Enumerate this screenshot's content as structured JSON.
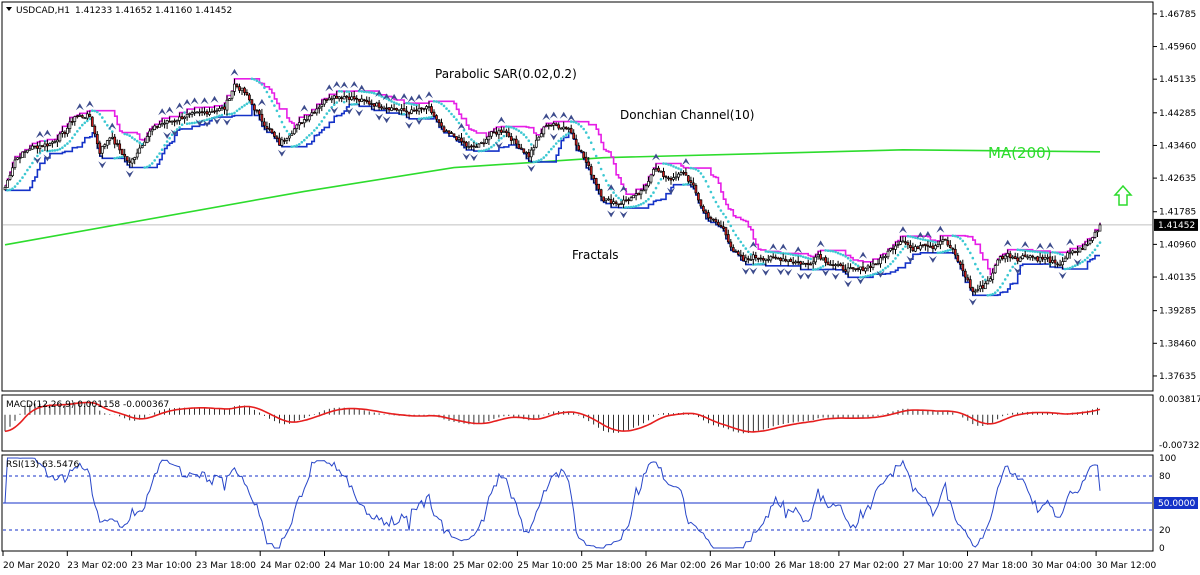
{
  "header": {
    "symbol": "USDCAD,H1",
    "open": "1.41233",
    "high": "1.41652",
    "low": "1.41160",
    "close": "1.41452"
  },
  "annotations": {
    "sar": "Parabolic SAR(0.02,0.2)",
    "donchian": "Donchian Channel(10)",
    "fractals": "Fractals",
    "ma": "MA(200)"
  },
  "colors": {
    "bull": "#ffffff",
    "bear": "#d21e1e",
    "candle_outline": "#000000",
    "donchian_upper": "#e61ee6",
    "donchian_lower": "#1432c8",
    "sar": "#3cc8d2",
    "ma": "#2ddc2d",
    "macd_signal": "#e61e1e",
    "rsi_line": "#2846c8",
    "current_price_line": "#c0c0c0",
    "arrow_up": "#2ddc2d"
  },
  "chart_data": [
    {
      "panel": "price",
      "type": "candlestick",
      "current_price": 1.41452,
      "current_price_label": "1.41452",
      "y_ticks": [
        "1.46785",
        "1.45960",
        "1.45135",
        "1.44285",
        "1.43460",
        "1.42635",
        "1.41785",
        "1.40960",
        "1.40135",
        "1.39285",
        "1.38460",
        "1.37635"
      ],
      "ylim": [
        1.3728,
        1.4706
      ],
      "ma_period": 200,
      "donchian_period": 10,
      "sar_params": [
        0.02,
        0.2
      ],
      "signal": "up",
      "price_path": [
        [
          0,
          1.424
        ],
        [
          4,
          1.431
        ],
        [
          10,
          1.434
        ],
        [
          18,
          1.435
        ],
        [
          24,
          1.438
        ],
        [
          28,
          1.442
        ],
        [
          34,
          1.442
        ],
        [
          38,
          1.433
        ],
        [
          42,
          1.437
        ],
        [
          50,
          1.43
        ],
        [
          58,
          1.438
        ],
        [
          62,
          1.44
        ],
        [
          68,
          1.441
        ],
        [
          72,
          1.442
        ],
        [
          80,
          1.443
        ],
        [
          88,
          1.444
        ],
        [
          92,
          1.45
        ],
        [
          96,
          1.448
        ],
        [
          103,
          1.441
        ],
        [
          110,
          1.435
        ],
        [
          118,
          1.44
        ],
        [
          125,
          1.444
        ],
        [
          130,
          1.447
        ],
        [
          137,
          1.447
        ],
        [
          142,
          1.446
        ],
        [
          148,
          1.445
        ],
        [
          155,
          1.444
        ],
        [
          162,
          1.443
        ],
        [
          170,
          1.444
        ],
        [
          176,
          1.438
        ],
        [
          180,
          1.437
        ],
        [
          186,
          1.434
        ],
        [
          190,
          1.4345
        ],
        [
          195,
          1.4375
        ],
        [
          200,
          1.4385
        ],
        [
          205,
          1.435
        ],
        [
          210,
          1.432
        ],
        [
          217,
          1.44
        ],
        [
          222,
          1.4395
        ],
        [
          226,
          1.439
        ],
        [
          234,
          1.429
        ],
        [
          240,
          1.421
        ],
        [
          246,
          1.42
        ],
        [
          252,
          1.4215
        ],
        [
          256,
          1.423
        ],
        [
          260,
          1.429
        ],
        [
          264,
          1.427
        ],
        [
          268,
          1.426
        ],
        [
          272,
          1.428
        ],
        [
          276,
          1.424
        ],
        [
          280,
          1.418
        ],
        [
          284,
          1.4155
        ],
        [
          288,
          1.4135
        ],
        [
          292,
          1.408
        ],
        [
          296,
          1.4055
        ],
        [
          300,
          1.4065
        ],
        [
          306,
          1.406
        ],
        [
          312,
          1.406
        ],
        [
          318,
          1.405
        ],
        [
          322,
          1.4045
        ],
        [
          326,
          1.407
        ],
        [
          330,
          1.405
        ],
        [
          336,
          1.4035
        ],
        [
          340,
          1.403
        ],
        [
          344,
          1.4035
        ],
        [
          350,
          1.405
        ],
        [
          356,
          1.409
        ],
        [
          360,
          1.411
        ],
        [
          364,
          1.408
        ],
        [
          368,
          1.41
        ],
        [
          372,
          1.409
        ],
        [
          376,
          1.411
        ],
        [
          380,
          1.408
        ],
        [
          384,
          1.403
        ],
        [
          388,
          1.3975
        ],
        [
          392,
          1.399
        ],
        [
          396,
          1.402
        ],
        [
          398,
          1.406
        ],
        [
          402,
          1.407
        ],
        [
          406,
          1.406
        ],
        [
          410,
          1.407
        ],
        [
          414,
          1.406
        ],
        [
          418,
          1.406
        ],
        [
          422,
          1.404
        ],
        [
          426,
          1.407
        ],
        [
          430,
          1.408
        ],
        [
          434,
          1.4095
        ],
        [
          437,
          1.4125
        ],
        [
          439,
          1.41452
        ]
      ],
      "ma_points": [
        [
          0,
          1.4095
        ],
        [
          120,
          1.423
        ],
        [
          180,
          1.429
        ],
        [
          240,
          1.4315
        ],
        [
          300,
          1.4325
        ],
        [
          360,
          1.4335
        ],
        [
          439,
          1.433
        ]
      ]
    },
    {
      "panel": "macd",
      "title": "MACD(12,26,9) 0.001158 -0.000367",
      "params": [
        12,
        26,
        9
      ],
      "values": [
        "0.001158",
        "-0.000367"
      ],
      "y_ticks": [
        "0.003817",
        "-0.007323"
      ],
      "ylim": [
        -0.0085,
        0.0045
      ]
    },
    {
      "panel": "rsi",
      "title": "RSI(13) 63.5476",
      "period": 13,
      "current": 63.5476,
      "current_label": "50.0000",
      "y_ticks": [
        "100",
        "80",
        "20",
        "0"
      ],
      "levels": [
        80,
        50,
        20
      ],
      "ylim": [
        0,
        100
      ]
    }
  ],
  "x_axis_labels": [
    "20 Mar 2020",
    "23 Mar 02:00",
    "23 Mar 10:00",
    "23 Mar 18:00",
    "24 Mar 02:00",
    "24 Mar 10:00",
    "24 Mar 18:00",
    "25 Mar 02:00",
    "25 Mar 10:00",
    "25 Mar 18:00",
    "26 Mar 02:00",
    "26 Mar 10:00",
    "26 Mar 18:00",
    "27 Mar 02:00",
    "27 Mar 10:00",
    "27 Mar 18:00",
    "30 Mar 04:00",
    "30 Mar 12:00"
  ]
}
